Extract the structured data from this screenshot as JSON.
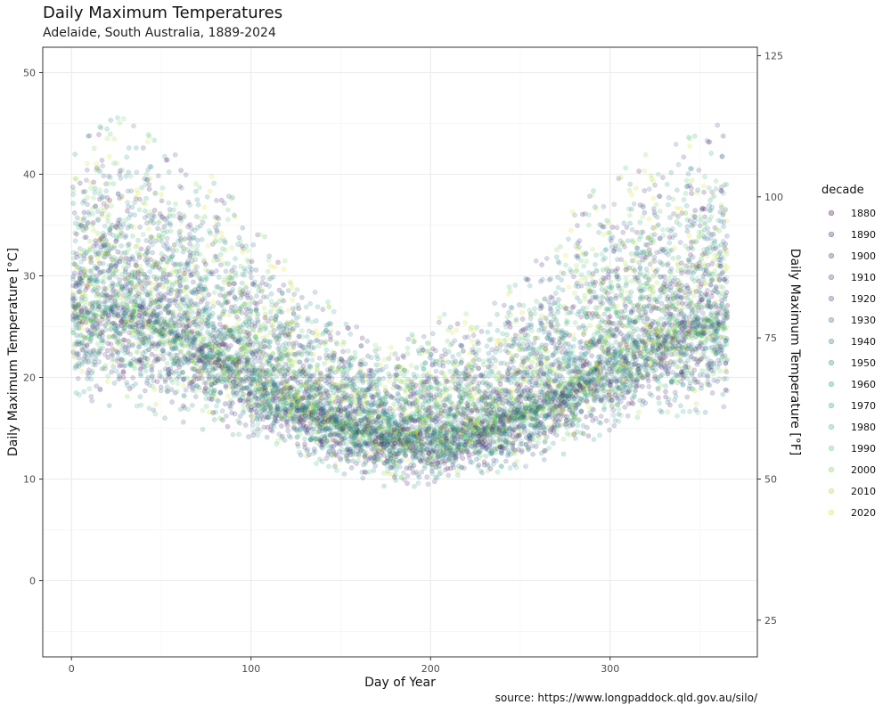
{
  "title": "Daily Maximum Temperatures",
  "subtitle": "Adelaide, South Australia, 1889-2024",
  "caption": "source: https://www.longpaddock.qld.gov.au/silo/",
  "colors": {
    "panel_border": "#333333",
    "grid_major": "#ebebeb",
    "grid_minor": "#f5f5f5",
    "decade_palette": [
      "#440154",
      "#481a6c",
      "#472f7d",
      "#414487",
      "#39568c",
      "#31688e",
      "#2a788e",
      "#23888e",
      "#1f988b",
      "#22a884",
      "#35b779",
      "#54c568",
      "#7ad151",
      "#a5db36",
      "#d2e21b",
      "#fde725"
    ]
  },
  "chart_data": {
    "type": "scatter",
    "title": "Daily Maximum Temperatures",
    "subtitle": "Adelaide, South Australia, 1889-2024",
    "xlabel": "Day of Year",
    "ylabel": "Daily Maximum Temperature [°C]",
    "ylabel_secondary": "Daily Maximum Temperature [°F]",
    "xlim": [
      -16,
      382
    ],
    "ylim": [
      -7.5,
      52.5
    ],
    "x_ticks": [
      0,
      100,
      200,
      300
    ],
    "y_ticks": [
      0,
      10,
      20,
      30,
      40,
      50
    ],
    "y2_ticks": [
      25,
      50,
      75,
      100,
      125
    ],
    "grid": true,
    "point_alpha": 0.2,
    "legend": {
      "title": "decade",
      "placement": "right",
      "entries": [
        "1880",
        "1890",
        "1900",
        "1910",
        "1920",
        "1930",
        "1940",
        "1950",
        "1960",
        "1970",
        "1980",
        "1990",
        "2000",
        "2010",
        "2020"
      ]
    },
    "seasonal_profile": {
      "description_points_doy": [
        0,
        30,
        60,
        90,
        120,
        150,
        180,
        200,
        230,
        260,
        290,
        320,
        365
      ],
      "median_c": [
        27.5,
        27.5,
        25.5,
        22.0,
        18.5,
        16.0,
        14.8,
        14.5,
        15.5,
        18.0,
        21.0,
        24.0,
        27.0
      ],
      "min_c": [
        17.0,
        17.0,
        15.5,
        14.0,
        12.0,
        10.5,
        9.0,
        9.0,
        10.0,
        11.5,
        13.5,
        15.0,
        17.0
      ],
      "max_c": [
        44.0,
        46.5,
        42.0,
        38.0,
        32.0,
        26.5,
        22.5,
        26.5,
        27.0,
        32.0,
        38.5,
        43.0,
        45.5
      ]
    },
    "series": [
      {
        "name": "1880"
      },
      {
        "name": "1890"
      },
      {
        "name": "1900"
      },
      {
        "name": "1910"
      },
      {
        "name": "1920"
      },
      {
        "name": "1930"
      },
      {
        "name": "1940"
      },
      {
        "name": "1950"
      },
      {
        "name": "1960"
      },
      {
        "name": "1970"
      },
      {
        "name": "1980"
      },
      {
        "name": "1990"
      },
      {
        "name": "2000"
      },
      {
        "name": "2010"
      },
      {
        "name": "2020"
      }
    ]
  }
}
